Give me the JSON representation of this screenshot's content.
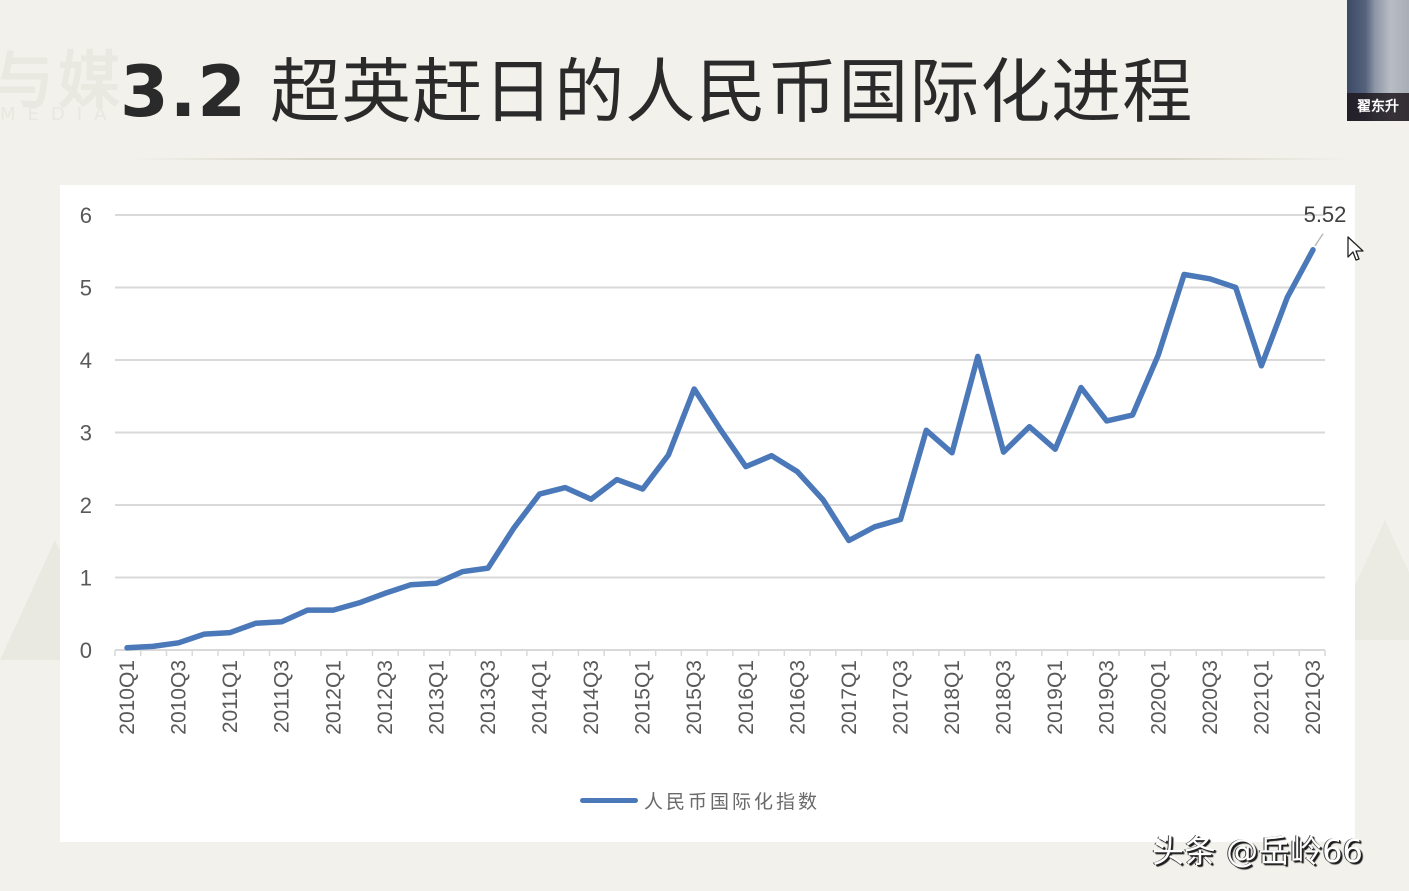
{
  "slide": {
    "title_number": "3.2",
    "title_text": "超英赶日的人民币国际化进程",
    "background_watermark": "与媒",
    "background_watermark_sub": "MEDIA"
  },
  "webcam": {
    "presenter_name": "翟东升"
  },
  "credit": {
    "text": "头条 @岳岭66"
  },
  "colors": {
    "line": "#4a78b8",
    "grid": "#d9d9d9",
    "axis_text": "#595959",
    "background": "#f2f1eb",
    "card": "#ffffff"
  },
  "chart_data": {
    "type": "line",
    "title": "",
    "xlabel": "",
    "ylabel": "",
    "ylim": [
      0,
      6
    ],
    "yticks": [
      0,
      1,
      2,
      3,
      4,
      5,
      6
    ],
    "grid": true,
    "legend_position": "bottom",
    "tick_labels_shown": [
      "2010Q1",
      "2010Q3",
      "2011Q1",
      "2011Q3",
      "2012Q1",
      "2012Q3",
      "2013Q1",
      "2013Q3",
      "2014Q1",
      "2014Q3",
      "2015Q1",
      "2015Q3",
      "2016Q1",
      "2016Q3",
      "2017Q1",
      "2017Q3",
      "2018Q1",
      "2018Q3",
      "2019Q1",
      "2019Q3",
      "2020Q1",
      "2020Q3",
      "2021Q1",
      "2021Q3"
    ],
    "x": [
      "2010Q1",
      "2010Q2",
      "2010Q3",
      "2010Q4",
      "2011Q1",
      "2011Q2",
      "2011Q3",
      "2011Q4",
      "2012Q1",
      "2012Q2",
      "2012Q3",
      "2012Q4",
      "2013Q1",
      "2013Q2",
      "2013Q3",
      "2013Q4",
      "2014Q1",
      "2014Q2",
      "2014Q3",
      "2014Q4",
      "2015Q1",
      "2015Q2",
      "2015Q3",
      "2015Q4",
      "2016Q1",
      "2016Q2",
      "2016Q3",
      "2016Q4",
      "2017Q1",
      "2017Q2",
      "2017Q3",
      "2017Q4",
      "2018Q1",
      "2018Q2",
      "2018Q3",
      "2018Q4",
      "2019Q1",
      "2019Q2",
      "2019Q3",
      "2019Q4",
      "2020Q1",
      "2020Q2",
      "2020Q3",
      "2020Q4",
      "2021Q1",
      "2021Q2",
      "2021Q3"
    ],
    "series": [
      {
        "name": "人民币国际化指数",
        "values": [
          0.03,
          0.05,
          0.1,
          0.22,
          0.24,
          0.37,
          0.39,
          0.55,
          0.55,
          0.65,
          0.78,
          0.9,
          0.92,
          1.08,
          1.13,
          1.68,
          2.15,
          2.24,
          2.08,
          2.35,
          2.22,
          2.69,
          3.6,
          3.05,
          2.53,
          2.68,
          2.46,
          2.07,
          1.51,
          1.7,
          1.8,
          3.03,
          2.72,
          4.05,
          2.73,
          3.08,
          2.77,
          3.62,
          3.16,
          3.24,
          4.07,
          5.18,
          5.12,
          5.0,
          3.92,
          4.86,
          5.52
        ]
      }
    ],
    "annotations": [
      {
        "x": "2021Q3",
        "text": "5.52"
      }
    ]
  }
}
